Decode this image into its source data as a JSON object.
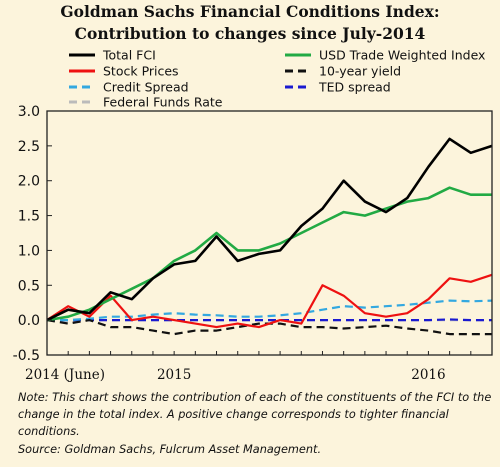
{
  "chart_data": {
    "type": "line",
    "title": "Goldman Sachs Financial Conditions Index:",
    "subtitle": "Contribution to changes since July-2014",
    "note": "Note: This chart shows the contribution of each of the constituents of the FCI to the change in the total index. A positive change corresponds to tighter financial conditions.",
    "source": "Source: Goldman Sachs, Fulcrum Asset Management.",
    "xlabel": "",
    "ylabel": "",
    "x_range": [
      "2014-07",
      "2016-04"
    ],
    "ylim": [
      -0.5,
      3.0
    ],
    "yticks": [
      -0.5,
      0.0,
      0.5,
      1.0,
      1.5,
      2.0,
      2.5,
      3.0
    ],
    "ytick_labels": [
      "-0.5",
      "0.0",
      "0.5",
      "1.0",
      "1.5",
      "2.0",
      "2.5",
      "3.0"
    ],
    "xtick_labels": [
      {
        "x": "2014-07",
        "label": "2014 (June)"
      },
      {
        "x": "2015-01",
        "label": "2015"
      },
      {
        "x": "2016-01",
        "label": "2016"
      }
    ],
    "grid": false,
    "legend_placement": "top",
    "legend_order": [
      "Total FCI",
      "USD Trade Weighted Index",
      "Stock Prices",
      "10-year yield",
      "Credit Spread",
      "TED spread",
      "Federal Funds Rate"
    ],
    "series": [
      {
        "name": "Total FCI",
        "color": "#000000",
        "style": "solid",
        "x": [
          "2014-07",
          "2014-08",
          "2014-09",
          "2014-10",
          "2014-11",
          "2014-12",
          "2015-01",
          "2015-02",
          "2015-03",
          "2015-04",
          "2015-05",
          "2015-06",
          "2015-07",
          "2015-08",
          "2015-09",
          "2015-10",
          "2015-11",
          "2015-12",
          "2016-01",
          "2016-02",
          "2016-03",
          "2016-04"
        ],
        "values": [
          0.0,
          0.15,
          0.1,
          0.4,
          0.3,
          0.6,
          0.8,
          0.85,
          1.2,
          0.85,
          0.95,
          1.0,
          1.35,
          1.6,
          2.0,
          1.7,
          1.55,
          1.75,
          2.2,
          2.6,
          2.4,
          2.5
        ]
      },
      {
        "name": "USD Trade Weighted Index",
        "color": "#22aa44",
        "style": "solid",
        "x": [
          "2014-07",
          "2014-08",
          "2014-09",
          "2014-10",
          "2014-11",
          "2014-12",
          "2015-01",
          "2015-02",
          "2015-03",
          "2015-04",
          "2015-05",
          "2015-06",
          "2015-07",
          "2015-08",
          "2015-09",
          "2015-10",
          "2015-11",
          "2015-12",
          "2016-01",
          "2016-02",
          "2016-03",
          "2016-04"
        ],
        "values": [
          0.0,
          0.05,
          0.15,
          0.3,
          0.45,
          0.6,
          0.85,
          1.0,
          1.25,
          1.0,
          1.0,
          1.1,
          1.25,
          1.4,
          1.55,
          1.5,
          1.6,
          1.7,
          1.75,
          1.9,
          1.8,
          1.8
        ]
      },
      {
        "name": "Stock Prices",
        "color": "#ee1111",
        "style": "solid",
        "x": [
          "2014-07",
          "2014-08",
          "2014-09",
          "2014-10",
          "2014-11",
          "2014-12",
          "2015-01",
          "2015-02",
          "2015-03",
          "2015-04",
          "2015-05",
          "2015-06",
          "2015-07",
          "2015-08",
          "2015-09",
          "2015-10",
          "2015-11",
          "2015-12",
          "2016-01",
          "2016-02",
          "2016-03",
          "2016-04"
        ],
        "values": [
          0.0,
          0.2,
          0.05,
          0.35,
          0.0,
          0.05,
          0.0,
          -0.05,
          -0.1,
          -0.05,
          -0.1,
          0.0,
          -0.05,
          0.5,
          0.35,
          0.1,
          0.05,
          0.1,
          0.3,
          0.6,
          0.55,
          0.65
        ]
      },
      {
        "name": "10-year yield",
        "color": "#111111",
        "style": "dashed",
        "x": [
          "2014-07",
          "2014-08",
          "2014-09",
          "2014-10",
          "2014-11",
          "2014-12",
          "2015-01",
          "2015-02",
          "2015-03",
          "2015-04",
          "2015-05",
          "2015-06",
          "2015-07",
          "2015-08",
          "2015-09",
          "2015-10",
          "2015-11",
          "2015-12",
          "2016-01",
          "2016-02",
          "2016-03",
          "2016-04"
        ],
        "values": [
          0.0,
          -0.05,
          0.0,
          -0.1,
          -0.1,
          -0.15,
          -0.2,
          -0.15,
          -0.15,
          -0.1,
          -0.05,
          -0.05,
          -0.1,
          -0.1,
          -0.12,
          -0.1,
          -0.08,
          -0.12,
          -0.15,
          -0.2,
          -0.2,
          -0.2
        ]
      },
      {
        "name": "Credit Spread",
        "color": "#33a8e0",
        "style": "dashed",
        "x": [
          "2014-07",
          "2014-08",
          "2014-09",
          "2014-10",
          "2014-11",
          "2014-12",
          "2015-01",
          "2015-02",
          "2015-03",
          "2015-04",
          "2015-05",
          "2015-06",
          "2015-07",
          "2015-08",
          "2015-09",
          "2015-10",
          "2015-11",
          "2015-12",
          "2016-01",
          "2016-02",
          "2016-03",
          "2016-04"
        ],
        "values": [
          0.0,
          0.0,
          0.02,
          0.05,
          0.05,
          0.08,
          0.1,
          0.08,
          0.07,
          0.05,
          0.05,
          0.07,
          0.1,
          0.15,
          0.2,
          0.18,
          0.2,
          0.22,
          0.25,
          0.28,
          0.27,
          0.28
        ]
      },
      {
        "name": "TED spread",
        "color": "#1a1ad0",
        "style": "dashed",
        "x": [
          "2014-07",
          "2014-08",
          "2014-09",
          "2014-10",
          "2014-11",
          "2014-12",
          "2015-01",
          "2015-02",
          "2015-03",
          "2015-04",
          "2015-05",
          "2015-06",
          "2015-07",
          "2015-08",
          "2015-09",
          "2015-10",
          "2015-11",
          "2015-12",
          "2016-01",
          "2016-02",
          "2016-03",
          "2016-04"
        ],
        "values": [
          0.0,
          0.0,
          0.0,
          0.0,
          0.0,
          0.0,
          0.0,
          0.0,
          0.0,
          0.0,
          0.0,
          0.0,
          0.0,
          0.0,
          0.0,
          0.0,
          0.0,
          0.0,
          0.0,
          0.01,
          0.0,
          0.0
        ]
      },
      {
        "name": "Federal Funds Rate",
        "color": "#bbbbbb",
        "style": "dashed",
        "x": [
          "2014-07",
          "2015-06",
          "2016-04"
        ],
        "values": [
          0.0,
          0.0,
          0.0
        ]
      }
    ]
  }
}
